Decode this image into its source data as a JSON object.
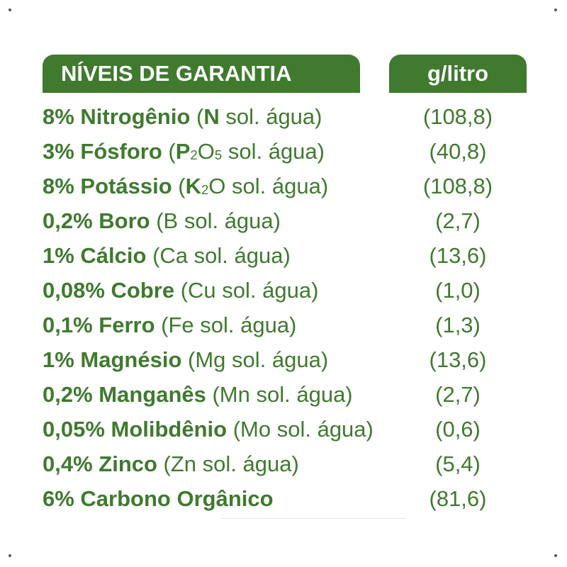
{
  "header": {
    "title": "NÍVEIS DE GARANTIA",
    "unit": "g/litro"
  },
  "colors": {
    "brand_green": "#3f7a2f",
    "background": "#ffffff"
  },
  "rows": [
    {
      "percent_name": "8% Nitrogênio",
      "open": " (",
      "symbol_bold": "N",
      "detail": " sol. água)",
      "value": "(108,8)"
    },
    {
      "percent_name": "3% Fósforo",
      "open": " (",
      "symbol_a": "P",
      "sub_a": "2",
      "symbol_b": "O",
      "sub_b": "5",
      "detail": " sol. água)",
      "value": "(40,8)"
    },
    {
      "percent_name": "8% Potássio",
      "open": " (",
      "symbol_a": "K",
      "sub_a": "2",
      "symbol_b": "O",
      "detail": " sol. água)",
      "value": "(108,8)"
    },
    {
      "percent_name": "0,2% Boro",
      "detail": " (B sol. água)",
      "value": "(2,7)"
    },
    {
      "percent_name": "1% Cálcio",
      "detail": " (Ca sol. água)",
      "value": "(13,6)"
    },
    {
      "percent_name": "0,08% Cobre",
      "detail": " (Cu sol. água)",
      "value": "(1,0)"
    },
    {
      "percent_name": "0,1% Ferro",
      "detail": " (Fe sol. água)",
      "value": "(1,3)"
    },
    {
      "percent_name": "1% Magnésio",
      "detail": " (Mg sol. água)",
      "value": "(13,6)"
    },
    {
      "percent_name": "0,2% Manganês",
      "detail": " (Mn sol. água)",
      "value": "(2,7)"
    },
    {
      "percent_name": "0,05% Molibdênio",
      "detail": " (Mo sol. água)",
      "value": "(0,6)"
    },
    {
      "percent_name": "0,4% Zinco",
      "detail": " (Zn sol. água)",
      "value": "(5,4)"
    },
    {
      "percent_name": "6% Carbono Orgânico",
      "value": "(81,6)"
    }
  ]
}
